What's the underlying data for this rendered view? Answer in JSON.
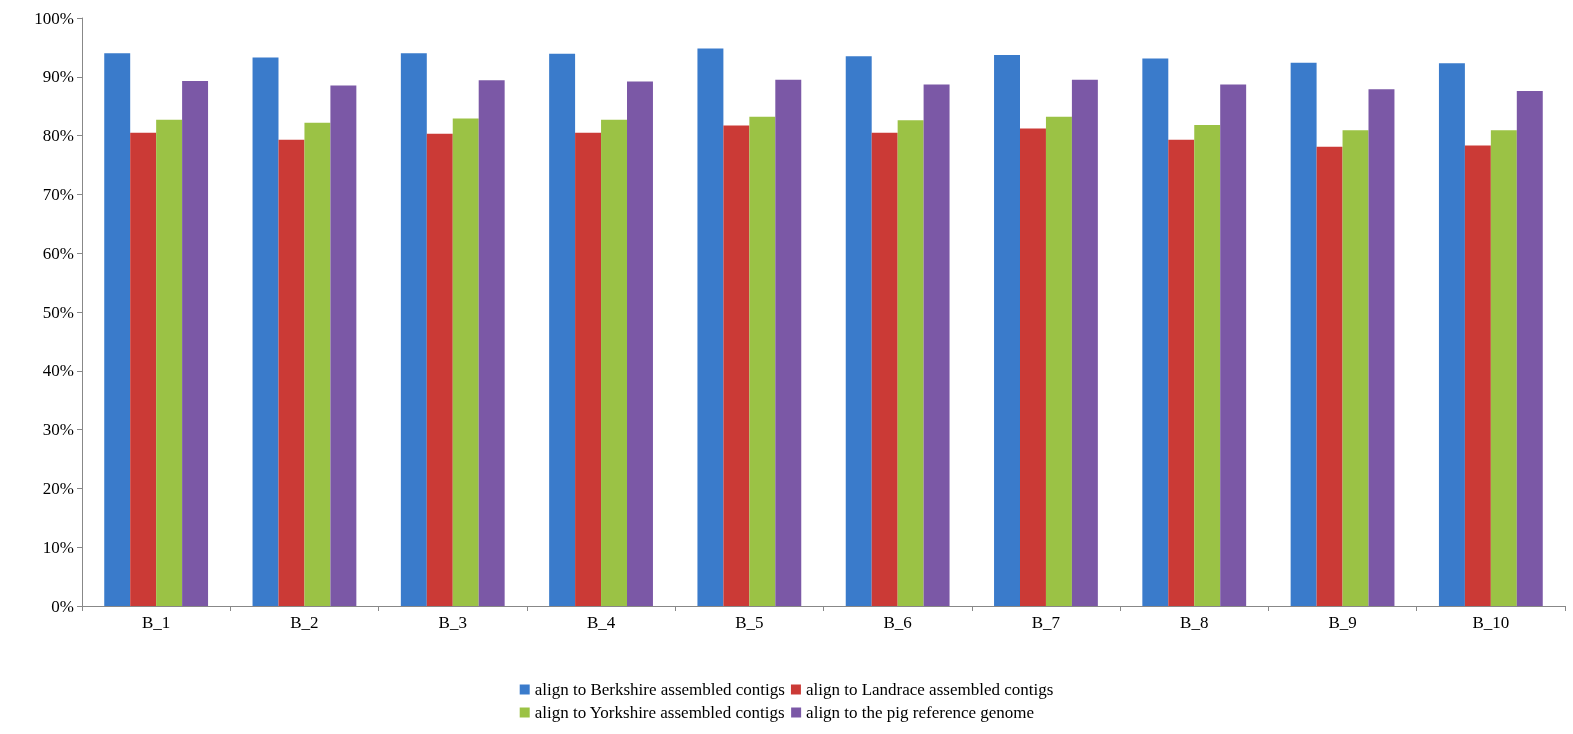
{
  "chart_data": {
    "type": "bar",
    "categories": [
      "B_1",
      "B_2",
      "B_3",
      "B_4",
      "B_5",
      "B_6",
      "B_7",
      "B_8",
      "B_9",
      "B_10"
    ],
    "series": [
      {
        "name": "align to Berkshire assembled contigs",
        "color": "#3a7bcb",
        "values": [
          94.0,
          93.3,
          94.0,
          93.9,
          94.8,
          93.5,
          93.7,
          93.1,
          92.4,
          92.3
        ]
      },
      {
        "name": "align to Landrace assembled contigs",
        "color": "#cb3a36",
        "values": [
          80.5,
          79.3,
          80.3,
          80.5,
          81.7,
          80.5,
          81.2,
          79.3,
          78.1,
          78.3
        ]
      },
      {
        "name": "align to Yorkshire assembled contigs",
        "color": "#9bc245",
        "values": [
          82.7,
          82.2,
          82.9,
          82.7,
          83.2,
          82.6,
          83.2,
          81.8,
          80.9,
          80.9
        ]
      },
      {
        "name": "align to the pig reference genome",
        "color": "#7b58a6",
        "values": [
          89.3,
          88.5,
          89.4,
          89.2,
          89.5,
          88.7,
          89.5,
          88.7,
          87.9,
          87.6
        ]
      }
    ],
    "ylim": [
      0,
      100
    ],
    "yticks": [
      {
        "value": 0,
        "label": "0%"
      },
      {
        "value": 10,
        "label": "10%"
      },
      {
        "value": 20,
        "label": "20%"
      },
      {
        "value": 30,
        "label": "30%"
      },
      {
        "value": 40,
        "label": "40%"
      },
      {
        "value": 50,
        "label": "50%"
      },
      {
        "value": 60,
        "label": "60%"
      },
      {
        "value": 70,
        "label": "70%"
      },
      {
        "value": 80,
        "label": "80%"
      },
      {
        "value": 90,
        "label": "90%"
      },
      {
        "value": 100,
        "label": "100%"
      }
    ],
    "grid": false,
    "legend": "bottom"
  }
}
